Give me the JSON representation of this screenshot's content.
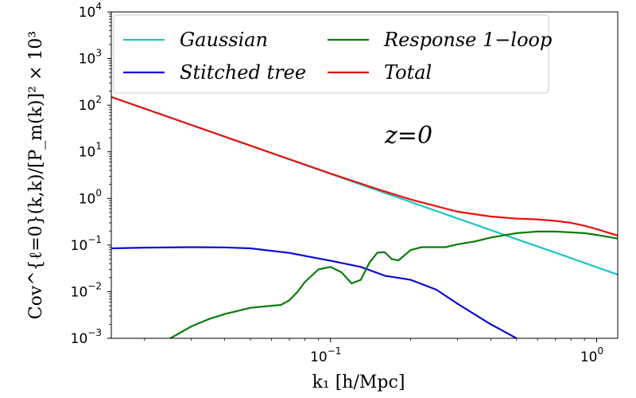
{
  "chart_data": {
    "type": "line",
    "title": "",
    "xlabel": "k₁ [h/Mpc]",
    "ylabel": "Cov^{ℓ=0}(k,k)/[P_m(k)]² × 10³",
    "xscale": "log",
    "yscale": "log",
    "xlim": [
      0.015,
      1.2
    ],
    "ylim": [
      0.001,
      10000
    ],
    "grid": false,
    "legend_position": "top",
    "annotation": "z=0",
    "x_ticks": [
      {
        "value": 0.1,
        "base": "10",
        "exp": "−1"
      },
      {
        "value": 1,
        "base": "10",
        "exp": "0"
      }
    ],
    "y_ticks": [
      {
        "value": 0.001,
        "base": "10",
        "exp": "−3"
      },
      {
        "value": 0.01,
        "base": "10",
        "exp": "−2"
      },
      {
        "value": 0.1,
        "base": "10",
        "exp": "−1"
      },
      {
        "value": 1,
        "base": "10",
        "exp": "0"
      },
      {
        "value": 10,
        "base": "10",
        "exp": "1"
      },
      {
        "value": 100,
        "base": "10",
        "exp": "2"
      },
      {
        "value": 1000,
        "base": "10",
        "exp": "3"
      },
      {
        "value": 10000,
        "base": "10",
        "exp": "4"
      }
    ],
    "series": [
      {
        "name": "Gaussian",
        "color": "#1ec4c4",
        "points": [
          [
            0.015,
            150
          ],
          [
            0.03,
            37.5
          ],
          [
            0.05,
            13.5
          ],
          [
            0.1,
            3.35
          ],
          [
            0.15,
            1.49
          ],
          [
            0.2,
            0.84
          ],
          [
            0.3,
            0.372
          ],
          [
            0.5,
            0.134
          ],
          [
            0.7,
            0.069
          ],
          [
            1.0,
            0.0335
          ],
          [
            1.2,
            0.0233
          ]
        ]
      },
      {
        "name": "Stitched tree",
        "color": "#0a0ad8",
        "points": [
          [
            0.015,
            0.085
          ],
          [
            0.02,
            0.088
          ],
          [
            0.03,
            0.09
          ],
          [
            0.04,
            0.089
          ],
          [
            0.05,
            0.085
          ],
          [
            0.07,
            0.068
          ],
          [
            0.1,
            0.046
          ],
          [
            0.13,
            0.034
          ],
          [
            0.16,
            0.022
          ],
          [
            0.2,
            0.018
          ],
          [
            0.25,
            0.011
          ],
          [
            0.3,
            0.0055
          ],
          [
            0.4,
            0.002
          ],
          [
            0.5,
            0.001
          ]
        ]
      },
      {
        "name": "Response 1−loop",
        "color": "#0a7d0a",
        "points": [
          [
            0.023,
            0.0007
          ],
          [
            0.025,
            0.001
          ],
          [
            0.03,
            0.0018
          ],
          [
            0.035,
            0.0026
          ],
          [
            0.04,
            0.0033
          ],
          [
            0.045,
            0.0039
          ],
          [
            0.05,
            0.0045
          ],
          [
            0.06,
            0.005
          ],
          [
            0.065,
            0.0052
          ],
          [
            0.07,
            0.0065
          ],
          [
            0.075,
            0.0098
          ],
          [
            0.08,
            0.016
          ],
          [
            0.09,
            0.03
          ],
          [
            0.1,
            0.034
          ],
          [
            0.11,
            0.026
          ],
          [
            0.12,
            0.015
          ],
          [
            0.13,
            0.018
          ],
          [
            0.14,
            0.042
          ],
          [
            0.15,
            0.069
          ],
          [
            0.16,
            0.07
          ],
          [
            0.17,
            0.05
          ],
          [
            0.18,
            0.047
          ],
          [
            0.2,
            0.078
          ],
          [
            0.22,
            0.09
          ],
          [
            0.25,
            0.09
          ],
          [
            0.27,
            0.09
          ],
          [
            0.3,
            0.104
          ],
          [
            0.35,
            0.12
          ],
          [
            0.4,
            0.145
          ],
          [
            0.5,
            0.18
          ],
          [
            0.6,
            0.195
          ],
          [
            0.7,
            0.195
          ],
          [
            0.9,
            0.18
          ],
          [
            1.0,
            0.165
          ],
          [
            1.2,
            0.138
          ]
        ]
      },
      {
        "name": "Total",
        "color": "#e8120c",
        "points": [
          [
            0.015,
            150
          ],
          [
            0.03,
            37.6
          ],
          [
            0.05,
            13.6
          ],
          [
            0.1,
            3.42
          ],
          [
            0.15,
            1.59
          ],
          [
            0.2,
            0.95
          ],
          [
            0.25,
            0.68
          ],
          [
            0.3,
            0.52
          ],
          [
            0.4,
            0.41
          ],
          [
            0.5,
            0.37
          ],
          [
            0.6,
            0.355
          ],
          [
            0.7,
            0.33
          ],
          [
            0.8,
            0.3
          ],
          [
            0.9,
            0.26
          ],
          [
            1.0,
            0.22
          ],
          [
            1.2,
            0.16
          ]
        ]
      }
    ]
  }
}
